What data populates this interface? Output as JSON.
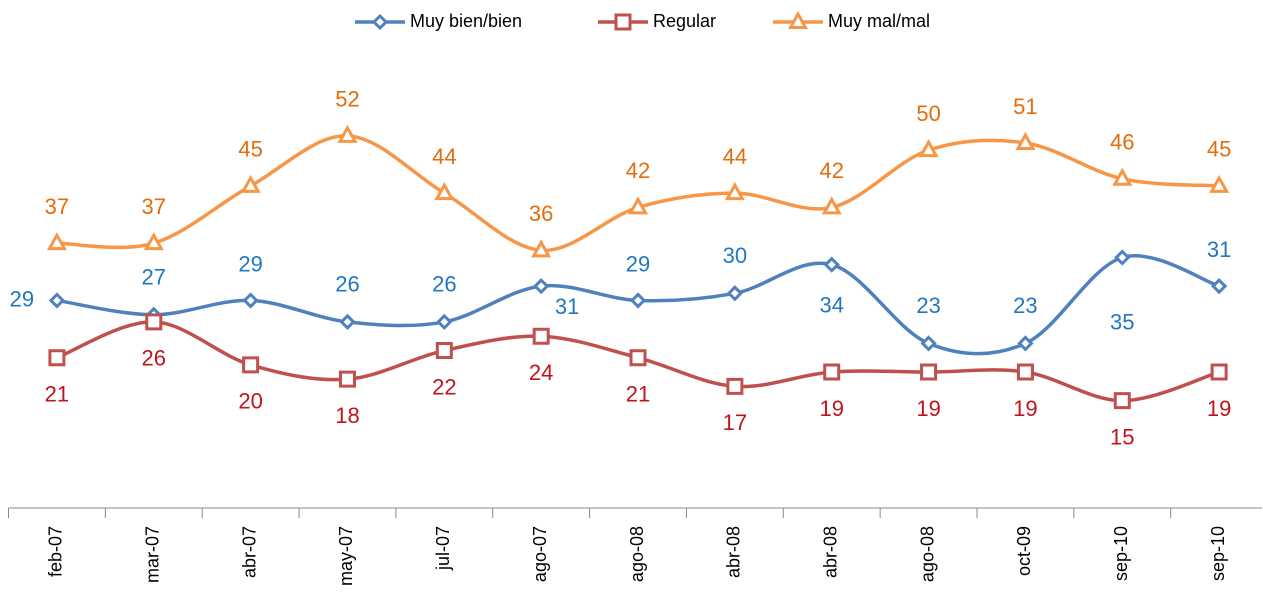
{
  "chart_data": {
    "type": "line",
    "categories": [
      "feb-07",
      "mar-07",
      "abr-07",
      "may-07",
      "jul-07",
      "ago-07",
      "ago-08",
      "abr-08",
      "abr-08",
      "ago-08",
      "oct-09",
      "sep-10",
      "sep-10"
    ],
    "series": [
      {
        "name": "Muy bien/bien",
        "color": "#4f81bd",
        "label_color": "#1f78c1",
        "marker": "diamond",
        "values": [
          29,
          27,
          29,
          26,
          26,
          31,
          29,
          30,
          34,
          23,
          23,
          35,
          31
        ]
      },
      {
        "name": "Regular",
        "color": "#c0504d",
        "label_color": "#c0141a",
        "marker": "square",
        "values": [
          21,
          26,
          20,
          18,
          22,
          24,
          21,
          17,
          19,
          19,
          19,
          15,
          19
        ]
      },
      {
        "name": "Muy mal/mal",
        "color": "#f79646",
        "label_color": "#e46c0a",
        "marker": "triangle",
        "values": [
          37,
          37,
          45,
          52,
          44,
          36,
          42,
          44,
          42,
          50,
          51,
          46,
          45
        ]
      }
    ],
    "ylim": [
      0,
      70
    ],
    "smooth": true,
    "legend": "top"
  }
}
